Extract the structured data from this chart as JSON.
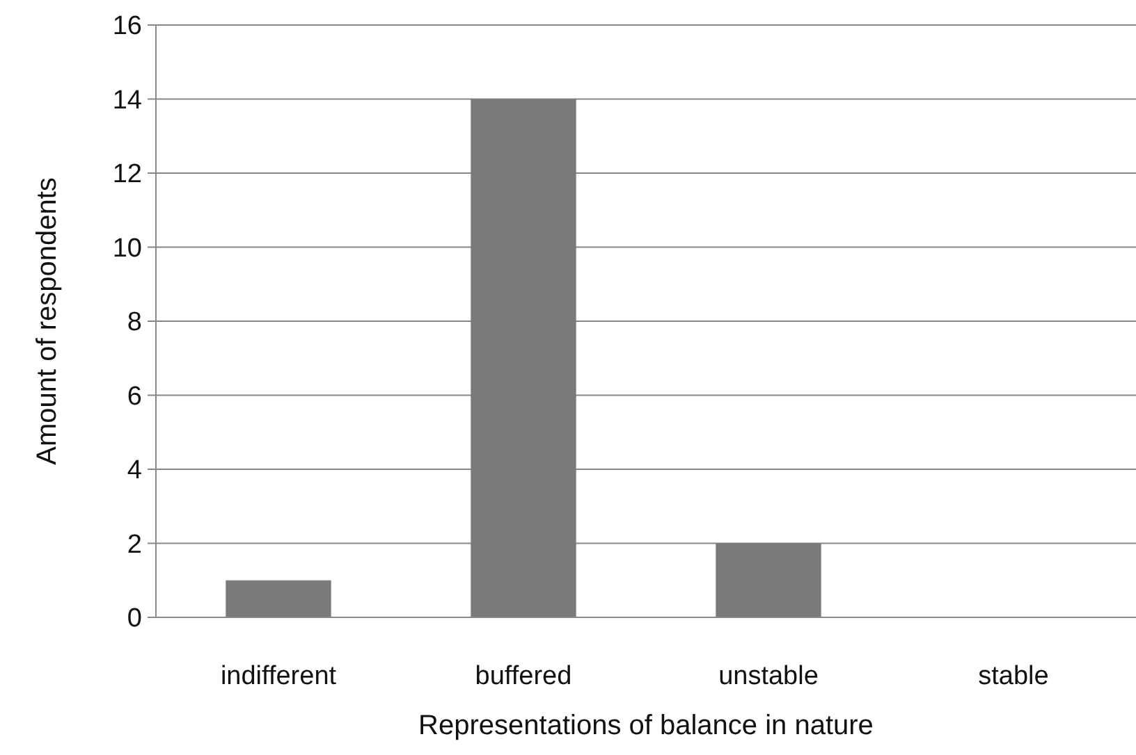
{
  "chart_data": {
    "type": "bar",
    "xlabel": "Representations of balance in nature",
    "ylabel": "Amount of respondents",
    "categories": [
      "indifferent",
      "buffered",
      "unstable",
      "stable"
    ],
    "values": [
      1,
      14,
      2,
      0
    ],
    "color": "#7a7a7a",
    "ylim": [
      0,
      16
    ],
    "yticks": [
      0,
      2,
      4,
      6,
      8,
      10,
      12,
      14,
      16
    ],
    "grid": "y"
  }
}
